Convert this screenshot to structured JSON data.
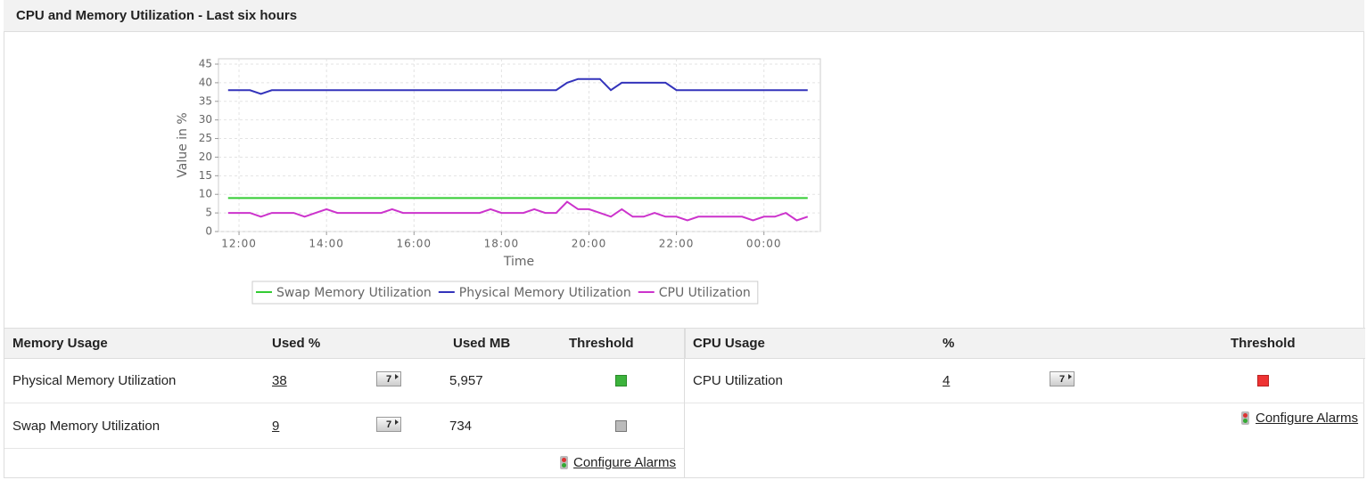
{
  "header": {
    "title": "CPU and Memory Utilization - Last six hours"
  },
  "chart_data": {
    "type": "line",
    "ylabel": "Value in %",
    "xlabel": "Time",
    "x": [
      11.75,
      12,
      12.25,
      12.5,
      12.75,
      13,
      13.25,
      13.5,
      13.75,
      14,
      14.25,
      14.5,
      14.75,
      15,
      15.25,
      15.5,
      15.75,
      16,
      16.25,
      16.5,
      16.75,
      17,
      17.25,
      17.5,
      17.75,
      18,
      18.25,
      18.5,
      18.75,
      19,
      19.25,
      19.5,
      19.75,
      20,
      20.25,
      20.5,
      20.75,
      21,
      21.25,
      21.5,
      21.75,
      22,
      22.25,
      22.5,
      22.75,
      23,
      23.25,
      23.5,
      23.75,
      24,
      24.25,
      24.5,
      24.75,
      25
    ],
    "series": [
      {
        "name": "Swap Memory Utilization",
        "color": "#33cc33",
        "values": [
          9,
          9,
          9,
          9,
          9,
          9,
          9,
          9,
          9,
          9,
          9,
          9,
          9,
          9,
          9,
          9,
          9,
          9,
          9,
          9,
          9,
          9,
          9,
          9,
          9,
          9,
          9,
          9,
          9,
          9,
          9,
          9,
          9,
          9,
          9,
          9,
          9,
          9,
          9,
          9,
          9,
          9,
          9,
          9,
          9,
          9,
          9,
          9,
          9,
          9,
          9,
          9,
          9,
          9
        ]
      },
      {
        "name": "Physical Memory Utilization",
        "color": "#3333bb",
        "values": [
          38,
          38,
          38,
          37,
          38,
          38,
          38,
          38,
          38,
          38,
          38,
          38,
          38,
          38,
          38,
          38,
          38,
          38,
          38,
          38,
          38,
          38,
          38,
          38,
          38,
          38,
          38,
          38,
          38,
          38,
          38,
          40,
          41,
          41,
          41,
          38,
          40,
          40,
          40,
          40,
          40,
          38,
          38,
          38,
          38,
          38,
          38,
          38,
          38,
          38,
          38,
          38,
          38,
          38
        ]
      },
      {
        "name": "CPU Utilization",
        "color": "#cc33cc",
        "values": [
          5,
          5,
          5,
          4,
          5,
          5,
          5,
          4,
          5,
          6,
          5,
          5,
          5,
          5,
          5,
          6,
          5,
          5,
          5,
          5,
          5,
          5,
          5,
          5,
          6,
          5,
          5,
          5,
          6,
          5,
          5,
          8,
          6,
          6,
          5,
          4,
          6,
          4,
          4,
          5,
          4,
          4,
          3,
          4,
          4,
          4,
          4,
          4,
          3,
          4,
          4,
          5,
          3,
          4
        ]
      }
    ],
    "xlim": [
      11.53,
      25.29
    ],
    "xticks": [
      {
        "value": 12,
        "label": "12:00"
      },
      {
        "value": 14,
        "label": "14:00"
      },
      {
        "value": 16,
        "label": "16:00"
      },
      {
        "value": 18,
        "label": "18:00"
      },
      {
        "value": 20,
        "label": "20:00"
      },
      {
        "value": 22,
        "label": "22:00"
      },
      {
        "value": 24,
        "label": "00:00"
      }
    ],
    "ylim": [
      0,
      45
    ],
    "yticks": [
      0,
      5,
      10,
      15,
      20,
      25,
      30,
      35,
      40,
      45
    ],
    "grid": true
  },
  "memory_table": {
    "headers": [
      "Memory Usage",
      "Used %",
      "Used MB",
      "Threshold"
    ],
    "rows": [
      [
        "Physical Memory Utilization",
        38,
        "7",
        "5,957"
      ],
      [
        "Swap Memory Utilization",
        9,
        "7",
        "734"
      ]
    ],
    "link": "Configure Alarms"
  },
  "cpu_table": {
    "headers": [
      "CPU Usage",
      "%",
      "Threshold"
    ],
    "rows": [
      [
        "CPU Utilization",
        4,
        "7"
      ]
    ],
    "link": "Configure Alarms"
  }
}
